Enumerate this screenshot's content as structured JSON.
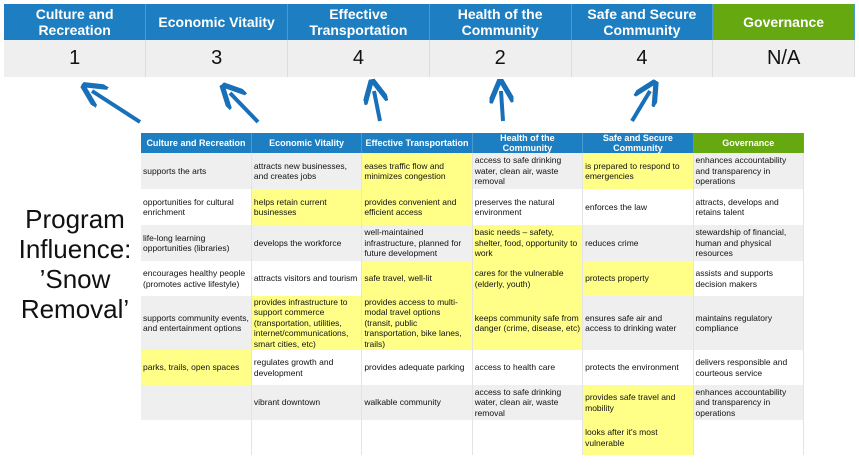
{
  "colors": {
    "header_blue": "#1d7fc1",
    "governance_green": "#66a80f",
    "highlight": "#ffff88",
    "arrow": "#1870b8"
  },
  "summary": {
    "headers": [
      "Culture and Recreation",
      "Economic Vitality",
      "Effective Transportation",
      "Health of the Community",
      "Safe and Secure Community",
      "Governance"
    ],
    "values": [
      "1",
      "3",
      "4",
      "2",
      "4",
      "N/A"
    ]
  },
  "label": {
    "line1": "Program",
    "line2": "Influence:",
    "line3": "’Snow",
    "line4": "Removal’"
  },
  "matrix": {
    "headers": [
      "Culture and Recreation",
      "Economic Vitality",
      "Effective Transportation",
      "Health of the Community",
      "Safe and Secure Community",
      "Governance"
    ],
    "rows": [
      [
        "supports the arts",
        "attracts new businesses, and creates jobs",
        "eases traffic flow and minimizes congestion",
        "access to safe drinking water, clean air, waste removal",
        "is prepared to respond to emergencies",
        "enhances accountability and transparency in operations"
      ],
      [
        "opportunities for cultural enrichment",
        "helps retain current businesses",
        "provides convenient and efficient access",
        "preserves the natural environment",
        "enforces the law",
        "attracts, develops and retains talent"
      ],
      [
        "life-long learning opportunities (libraries)",
        "develops the workforce",
        "well-maintained infrastructure, planned for future development",
        "basic needs – safety, shelter, food, opportunity to work",
        "reduces crime",
        "stewardship of financial, human and physical resources"
      ],
      [
        "encourages healthy people (promotes active lifestyle)",
        "attracts visitors and tourism",
        "safe travel, well-lit",
        "cares for the vulnerable (elderly, youth)",
        "protects property",
        "assists and supports decision makers"
      ],
      [
        "supports community events, and entertainment options",
        "provides infrastructure to support commerce (transportation, utilities, internet/communications, smart cities, etc)",
        "provides access to multi-modal travel options (transit, public transportation, bike lanes, trails)",
        "keeps community safe from danger (crime, disease, etc)",
        "ensures safe air and access to drinking water",
        "maintains regulatory compliance"
      ],
      [
        "parks, trails, open spaces",
        "regulates growth and development",
        "provides adequate parking",
        "access to health care",
        "protects the environment",
        "delivers responsible and courteous service"
      ],
      [
        "",
        "vibrant downtown",
        "walkable community",
        "access to safe drinking water, clean air, waste removal",
        "provides safe travel and mobility",
        "enhances accountability and transparency in operations"
      ],
      [
        "",
        "",
        "",
        "",
        "looks after it's most vulnerable",
        ""
      ]
    ],
    "highlighted": [
      [
        2,
        4
      ],
      [
        1,
        2
      ],
      [
        3
      ],
      [
        2,
        3,
        4
      ],
      [
        1,
        2,
        3
      ],
      [
        0
      ],
      [
        4
      ],
      [
        4
      ]
    ]
  }
}
